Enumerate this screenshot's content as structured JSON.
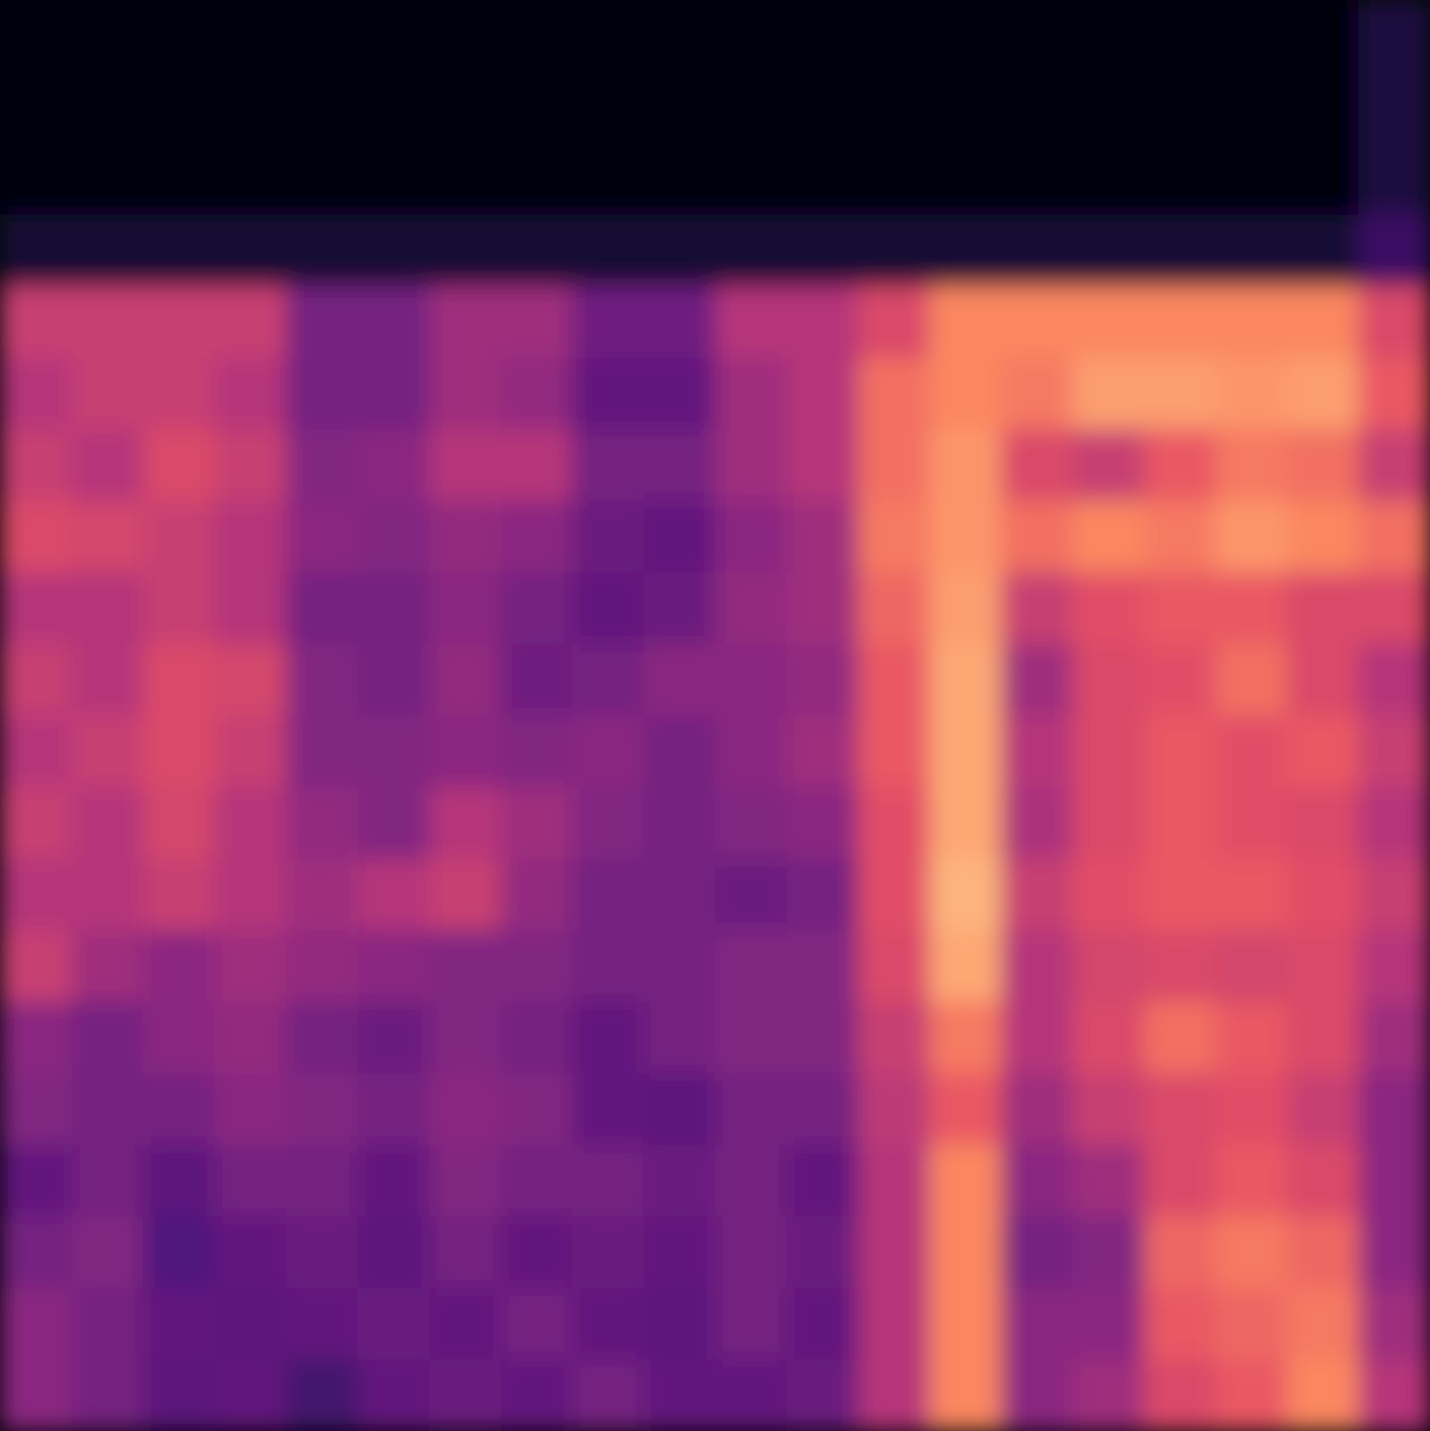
{
  "chart_data": {
    "type": "heatmap",
    "tick_labels": false,
    "color_range": [
      0,
      1
    ],
    "cells": [
      [
        0.02,
        0.02,
        0.02,
        0.02,
        0.02,
        0.02,
        0.02,
        0.02,
        0.02,
        0.02,
        0.02,
        0.02,
        0.02,
        0.02,
        0.02,
        0.02,
        0.02,
        0.02,
        0.02,
        0.12
      ],
      [
        0.02,
        0.02,
        0.02,
        0.02,
        0.02,
        0.02,
        0.02,
        0.02,
        0.02,
        0.02,
        0.02,
        0.02,
        0.02,
        0.02,
        0.02,
        0.02,
        0.02,
        0.02,
        0.02,
        0.12
      ],
      [
        0.02,
        0.02,
        0.02,
        0.02,
        0.02,
        0.02,
        0.02,
        0.02,
        0.02,
        0.02,
        0.02,
        0.02,
        0.02,
        0.02,
        0.02,
        0.02,
        0.02,
        0.02,
        0.02,
        0.12
      ],
      [
        0.1,
        0.1,
        0.1,
        0.1,
        0.1,
        0.1,
        0.1,
        0.1,
        0.1,
        0.1,
        0.1,
        0.1,
        0.1,
        0.1,
        0.1,
        0.1,
        0.1,
        0.1,
        0.1,
        0.2
      ],
      [
        0.55,
        0.55,
        0.55,
        0.55,
        0.35,
        0.35,
        0.45,
        0.45,
        0.33,
        0.33,
        0.5,
        0.5,
        0.6,
        0.75,
        0.75,
        0.75,
        0.75,
        0.75,
        0.75,
        0.6
      ],
      [
        0.5,
        0.55,
        0.55,
        0.5,
        0.35,
        0.35,
        0.45,
        0.42,
        0.3,
        0.3,
        0.45,
        0.5,
        0.7,
        0.75,
        0.72,
        0.8,
        0.8,
        0.78,
        0.8,
        0.65
      ],
      [
        0.55,
        0.5,
        0.6,
        0.55,
        0.38,
        0.4,
        0.5,
        0.5,
        0.35,
        0.35,
        0.45,
        0.5,
        0.7,
        0.78,
        0.6,
        0.55,
        0.65,
        0.72,
        0.7,
        0.55
      ],
      [
        0.6,
        0.58,
        0.55,
        0.5,
        0.4,
        0.38,
        0.42,
        0.4,
        0.32,
        0.3,
        0.4,
        0.45,
        0.72,
        0.78,
        0.7,
        0.75,
        0.72,
        0.78,
        0.75,
        0.7
      ],
      [
        0.5,
        0.5,
        0.55,
        0.5,
        0.35,
        0.35,
        0.4,
        0.35,
        0.3,
        0.32,
        0.42,
        0.45,
        0.68,
        0.8,
        0.55,
        0.62,
        0.65,
        0.65,
        0.6,
        0.6
      ],
      [
        0.55,
        0.5,
        0.6,
        0.58,
        0.38,
        0.35,
        0.42,
        0.33,
        0.35,
        0.4,
        0.4,
        0.42,
        0.65,
        0.82,
        0.45,
        0.6,
        0.62,
        0.7,
        0.6,
        0.5
      ],
      [
        0.5,
        0.55,
        0.6,
        0.55,
        0.38,
        0.38,
        0.4,
        0.38,
        0.4,
        0.35,
        0.4,
        0.45,
        0.65,
        0.82,
        0.5,
        0.6,
        0.65,
        0.62,
        0.65,
        0.55
      ],
      [
        0.55,
        0.5,
        0.58,
        0.5,
        0.42,
        0.38,
        0.5,
        0.45,
        0.38,
        0.35,
        0.38,
        0.4,
        0.62,
        0.82,
        0.48,
        0.6,
        0.65,
        0.62,
        0.6,
        0.5
      ],
      [
        0.5,
        0.5,
        0.55,
        0.5,
        0.45,
        0.5,
        0.55,
        0.42,
        0.35,
        0.35,
        0.32,
        0.35,
        0.62,
        0.85,
        0.55,
        0.62,
        0.65,
        0.65,
        0.62,
        0.55
      ],
      [
        0.55,
        0.45,
        0.4,
        0.45,
        0.42,
        0.4,
        0.38,
        0.38,
        0.35,
        0.35,
        0.38,
        0.38,
        0.6,
        0.82,
        0.5,
        0.58,
        0.6,
        0.58,
        0.6,
        0.5
      ],
      [
        0.4,
        0.35,
        0.4,
        0.42,
        0.35,
        0.32,
        0.38,
        0.35,
        0.3,
        0.35,
        0.38,
        0.38,
        0.55,
        0.72,
        0.5,
        0.6,
        0.7,
        0.65,
        0.6,
        0.45
      ],
      [
        0.38,
        0.35,
        0.35,
        0.4,
        0.38,
        0.35,
        0.4,
        0.38,
        0.3,
        0.28,
        0.35,
        0.35,
        0.52,
        0.65,
        0.45,
        0.55,
        0.6,
        0.62,
        0.55,
        0.4
      ],
      [
        0.3,
        0.35,
        0.28,
        0.35,
        0.35,
        0.3,
        0.38,
        0.35,
        0.35,
        0.32,
        0.35,
        0.3,
        0.5,
        0.75,
        0.4,
        0.45,
        0.6,
        0.65,
        0.6,
        0.4
      ],
      [
        0.35,
        0.38,
        0.25,
        0.3,
        0.32,
        0.28,
        0.35,
        0.3,
        0.32,
        0.3,
        0.35,
        0.32,
        0.5,
        0.75,
        0.35,
        0.38,
        0.68,
        0.72,
        0.68,
        0.4
      ],
      [
        0.4,
        0.35,
        0.3,
        0.28,
        0.3,
        0.32,
        0.3,
        0.35,
        0.3,
        0.28,
        0.35,
        0.3,
        0.5,
        0.75,
        0.4,
        0.4,
        0.65,
        0.68,
        0.72,
        0.45
      ],
      [
        0.4,
        0.35,
        0.28,
        0.3,
        0.22,
        0.3,
        0.32,
        0.3,
        0.35,
        0.3,
        0.3,
        0.32,
        0.5,
        0.75,
        0.4,
        0.45,
        0.6,
        0.65,
        0.75,
        0.5
      ]
    ]
  }
}
